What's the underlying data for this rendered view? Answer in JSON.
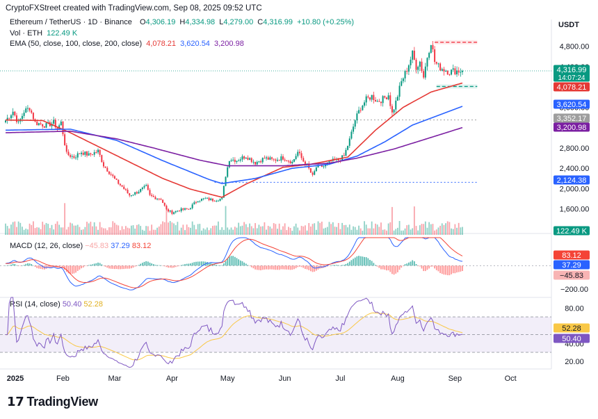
{
  "header": {
    "credit": "CryptoFXStreet created with TradingView.com, Sep 08, 2025 09:52 UTC"
  },
  "symbol": {
    "name": "Ethereum / TetherUS · 1D · Binance",
    "o_label": "O",
    "o": "4,306.19",
    "h_label": "H",
    "h": "4,334.98",
    "l_label": "L",
    "l": "4,279.00",
    "c_label": "C",
    "c": "4,316.99",
    "change": "+10.80 (+0.25%)"
  },
  "vol_legend": {
    "label": "Vol · ETH",
    "value": "122.49 K"
  },
  "ema_legend": {
    "label": "EMA (50, close, 100, close, 200, close)",
    "v50": "4,078.21",
    "v100": "3,620.54",
    "v200": "3,200.98"
  },
  "macd_legend": {
    "label": "MACD (12, 26, close)",
    "hist": "−45.83",
    "macd": "37.29",
    "signal": "83.12"
  },
  "rsi_legend": {
    "label": "RSI (14, close)",
    "rsi": "50.40",
    "ma": "52.28"
  },
  "currency": "USDT",
  "colors": {
    "up": "#089981",
    "down": "#f23645",
    "ema50": "#e53935",
    "ema100": "#2962ff",
    "ema200": "#7b1fa2",
    "rsi": "#7e57c2",
    "rsi_ma": "#f9c846",
    "macd": "#2962ff",
    "signal": "#f44336"
  },
  "price_axis": {
    "ticks": [
      {
        "v": 4800,
        "label": "4,800.00"
      },
      {
        "v": 4400,
        "label": "4,400.00"
      },
      {
        "v": 3600,
        "label": "3,600.00"
      },
      {
        "v": 2800,
        "label": "2,800.00"
      },
      {
        "v": 2400,
        "label": "2,400.00"
      },
      {
        "v": 2000,
        "label": "2,000.00"
      },
      {
        "v": 1600,
        "label": "1,600.00"
      },
      {
        "v": 1200,
        "label": "1,200.00"
      }
    ],
    "badges": [
      {
        "v": 4317,
        "label": "4,316.99",
        "sub": "14:07:24",
        "color": "#089981"
      },
      {
        "v": 4078,
        "label": "4,078.21",
        "color": "#e53935"
      },
      {
        "v": 3620,
        "label": "3,620.54",
        "color": "#2962ff"
      },
      {
        "v": 3352,
        "label": "3,352.17",
        "color": "#9e9e9e"
      },
      {
        "v": 3201,
        "label": "3,200.98",
        "color": "#7b1fa2"
      },
      {
        "v": 2124,
        "label": "2,124.38",
        "color": "#2962ff"
      }
    ],
    "vol_badge": {
      "label": "122.49 K",
      "color": "#089981"
    }
  },
  "macd_axis": {
    "ticks": [
      {
        "v": -200,
        "label": "−200.00"
      }
    ],
    "badges": [
      {
        "v": 83.12,
        "label": "83.12",
        "color": "#f44336"
      },
      {
        "v": 37.29,
        "label": "37.29",
        "color": "#2962ff"
      },
      {
        "v": -45.83,
        "label": "−45.83",
        "color": "#f8b4b4",
        "text": "#131722"
      }
    ]
  },
  "rsi_axis": {
    "ticks": [
      {
        "v": 80,
        "label": "80.00"
      },
      {
        "v": 40,
        "label": "40.00"
      },
      {
        "v": 20,
        "label": "20.00"
      }
    ],
    "badges": [
      {
        "v": 52.28,
        "label": "52.28",
        "color": "#f9c846",
        "text": "#131722"
      },
      {
        "v": 50.4,
        "label": "50.40",
        "color": "#7e57c2"
      }
    ]
  },
  "time_axis": [
    {
      "day": 0,
      "label": "2025"
    },
    {
      "day": 31,
      "label": "Feb"
    },
    {
      "day": 59,
      "label": "Mar"
    },
    {
      "day": 90,
      "label": "Apr"
    },
    {
      "day": 120,
      "label": "May"
    },
    {
      "day": 151,
      "label": "Jun"
    },
    {
      "day": 181,
      "label": "Jul"
    },
    {
      "day": 212,
      "label": "Aug"
    },
    {
      "day": 243,
      "label": "Sep"
    },
    {
      "day": 273,
      "label": "Oct"
    }
  ],
  "brand": "TradingView",
  "chart_data": {
    "type": "line",
    "price_axis_range": [
      1200,
      5000
    ],
    "macd_axis_range": [
      -260,
      240
    ],
    "rsi_axis_range": [
      12,
      92
    ],
    "price_anchors": [
      [
        0,
        3340
      ],
      [
        4,
        3520
      ],
      [
        7,
        3280
      ],
      [
        10,
        3520
      ],
      [
        13,
        3590
      ],
      [
        16,
        3300
      ],
      [
        19,
        3270
      ],
      [
        22,
        3240
      ],
      [
        26,
        3300
      ],
      [
        28,
        3180
      ],
      [
        30,
        3300
      ],
      [
        33,
        2680
      ],
      [
        37,
        2620
      ],
      [
        41,
        2720
      ],
      [
        45,
        2660
      ],
      [
        50,
        2740
      ],
      [
        53,
        2460
      ],
      [
        57,
        2280
      ],
      [
        60,
        2140
      ],
      [
        63,
        2040
      ],
      [
        67,
        1870
      ],
      [
        71,
        1930
      ],
      [
        76,
        2040
      ],
      [
        78,
        1860
      ],
      [
        81,
        1820
      ],
      [
        84,
        1800
      ],
      [
        87,
        1580
      ],
      [
        90,
        1530
      ],
      [
        94,
        1580
      ],
      [
        99,
        1600
      ],
      [
        104,
        1780
      ],
      [
        108,
        1800
      ],
      [
        112,
        1780
      ],
      [
        117,
        1800
      ],
      [
        119,
        2260
      ],
      [
        121,
        2580
      ],
      [
        125,
        2560
      ],
      [
        130,
        2640
      ],
      [
        135,
        2510
      ],
      [
        140,
        2600
      ],
      [
        145,
        2560
      ],
      [
        150,
        2610
      ],
      [
        155,
        2520
      ],
      [
        158,
        2720
      ],
      [
        161,
        2540
      ],
      [
        163,
        2460
      ],
      [
        166,
        2240
      ],
      [
        168,
        2420
      ],
      [
        172,
        2440
      ],
      [
        176,
        2540
      ],
      [
        180,
        2560
      ],
      [
        183,
        2640
      ],
      [
        186,
        2960
      ],
      [
        189,
        3350
      ],
      [
        192,
        3600
      ],
      [
        195,
        3750
      ],
      [
        198,
        3820
      ],
      [
        201,
        3720
      ],
      [
        204,
        3760
      ],
      [
        207,
        3850
      ],
      [
        209,
        3480
      ],
      [
        211,
        3700
      ],
      [
        214,
        4100
      ],
      [
        217,
        4350
      ],
      [
        220,
        4650
      ],
      [
        222,
        4400
      ],
      [
        224,
        4500
      ],
      [
        226,
        4200
      ],
      [
        228,
        4600
      ],
      [
        230,
        4900
      ],
      [
        232,
        4500
      ],
      [
        234,
        4400
      ],
      [
        237,
        4350
      ],
      [
        240,
        4300
      ],
      [
        243,
        4320
      ],
      [
        247,
        4317
      ]
    ],
    "ema": {
      "ema50": [
        [
          0,
          3350
        ],
        [
          20,
          3340
        ],
        [
          35,
          3100
        ],
        [
          60,
          2650
        ],
        [
          85,
          2200
        ],
        [
          100,
          1990
        ],
        [
          117,
          1830
        ],
        [
          130,
          2090
        ],
        [
          150,
          2420
        ],
        [
          165,
          2480
        ],
        [
          185,
          2620
        ],
        [
          200,
          3150
        ],
        [
          215,
          3600
        ],
        [
          230,
          3900
        ],
        [
          247,
          4078
        ]
      ],
      "ema100": [
        [
          0,
          3150
        ],
        [
          35,
          3170
        ],
        [
          60,
          2950
        ],
        [
          85,
          2550
        ],
        [
          110,
          2180
        ],
        [
          117,
          2100
        ],
        [
          135,
          2200
        ],
        [
          155,
          2400
        ],
        [
          175,
          2480
        ],
        [
          190,
          2640
        ],
        [
          205,
          2920
        ],
        [
          220,
          3250
        ],
        [
          247,
          3620
        ]
      ],
      "ema200": [
        [
          0,
          3100
        ],
        [
          35,
          3130
        ],
        [
          60,
          2980
        ],
        [
          80,
          2800
        ],
        [
          105,
          2560
        ],
        [
          120,
          2450
        ],
        [
          150,
          2450
        ],
        [
          175,
          2500
        ],
        [
          190,
          2600
        ],
        [
          210,
          2780
        ],
        [
          225,
          2950
        ],
        [
          247,
          3201
        ]
      ]
    },
    "horizontal_levels": [
      {
        "v": 4880,
        "from": 232,
        "to": 255,
        "color": "#f23645",
        "label": "resistance"
      },
      {
        "v": 4010,
        "from": 233,
        "to": 255,
        "color": "#089981",
        "label": "support"
      },
      {
        "v": 3352,
        "from": 0,
        "to": 255,
        "color": "#9e9e9e"
      },
      {
        "v": 2124,
        "from": 113,
        "to": 255,
        "color": "#2962ff"
      }
    ],
    "macd": {
      "macd_last": 37.29,
      "signal_last": 83.12,
      "hist_last": -45.83
    },
    "rsi": {
      "last": 50.4,
      "ma_last": 52.28,
      "band_upper": 70,
      "band_mid": 50,
      "band_lower": 30
    },
    "last_price": 4316.99,
    "last_volume": "122.49 K"
  }
}
